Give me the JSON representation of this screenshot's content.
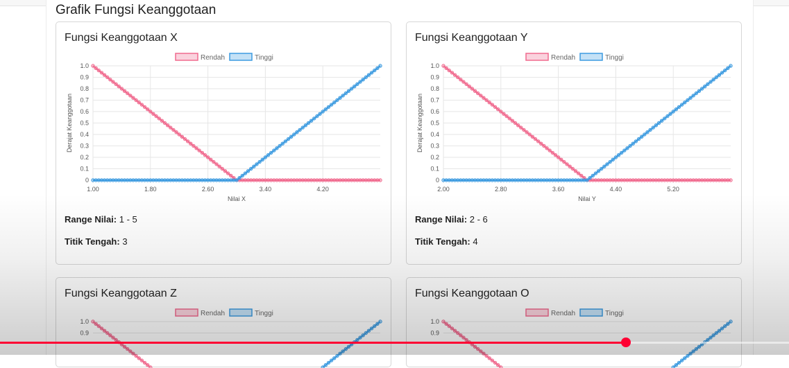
{
  "section_title": "Grafik Fungsi Keanggotaan",
  "legend": {
    "low": "Rendah",
    "high": "Tinggi"
  },
  "colors": {
    "low": "#f06a8e",
    "high": "#3d9be0",
    "progress": "#ff0033"
  },
  "y_axis_label": "Derajat Keanggotaan",
  "player": {
    "progress_fraction": 0.793
  },
  "cards": [
    {
      "title": "Fungsi Keanggotaan X",
      "range_label": "Range Nilai:",
      "range_value": "1 - 5",
      "mid_label": "Titik Tengah:",
      "mid_value": "3",
      "xlabel": "Nilai X",
      "xticks": [
        "1.00",
        "1.80",
        "2.60",
        "3.40",
        "4.20"
      ]
    },
    {
      "title": "Fungsi Keanggotaan Y",
      "range_label": "Range Nilai:",
      "range_value": "2 - 6",
      "mid_label": "Titik Tengah:",
      "mid_value": "4",
      "xlabel": "Nilai Y",
      "xticks": [
        "2.00",
        "2.80",
        "3.60",
        "4.40",
        "5.20"
      ]
    },
    {
      "title": "Fungsi Keanggotaan Z"
    },
    {
      "title": "Fungsi Keanggotaan O"
    }
  ],
  "chart_data": [
    {
      "type": "line",
      "xlabel": "Nilai X",
      "ylabel": "Derajat Keanggotaan",
      "xlim": [
        1,
        5
      ],
      "ylim": [
        0,
        1
      ],
      "yticks": [
        "0",
        "0.1",
        "0.2",
        "0.3",
        "0.4",
        "0.5",
        "0.6",
        "0.7",
        "0.8",
        "0.9",
        "1.0"
      ],
      "xticks": [
        "1.00",
        "1.80",
        "2.60",
        "3.40",
        "4.20"
      ],
      "legend": "top",
      "series": [
        {
          "name": "Rendah",
          "x": [
            1,
            3,
            5
          ],
          "y": [
            1,
            0,
            0
          ]
        },
        {
          "name": "Tinggi",
          "x": [
            1,
            3,
            5
          ],
          "y": [
            0,
            0,
            1
          ]
        }
      ]
    },
    {
      "type": "line",
      "xlabel": "Nilai Y",
      "ylabel": "Derajat Keanggotaan",
      "xlim": [
        2,
        6
      ],
      "ylim": [
        0,
        1
      ],
      "yticks": [
        "0",
        "0.1",
        "0.2",
        "0.3",
        "0.4",
        "0.5",
        "0.6",
        "0.7",
        "0.8",
        "0.9",
        "1.0"
      ],
      "xticks": [
        "2.00",
        "2.80",
        "3.60",
        "4.40",
        "5.20"
      ],
      "legend": "top",
      "series": [
        {
          "name": "Rendah",
          "x": [
            2,
            4,
            6
          ],
          "y": [
            1,
            0,
            0
          ]
        },
        {
          "name": "Tinggi",
          "x": [
            2,
            4,
            6
          ],
          "y": [
            0,
            0,
            1
          ]
        }
      ]
    },
    {
      "type": "line",
      "ylim": [
        0,
        1
      ],
      "yticks": [
        "0.9",
        "1.0"
      ],
      "legend": "top",
      "series": [
        {
          "name": "Rendah",
          "x": [
            0,
            0.5
          ],
          "y": [
            1,
            0
          ]
        },
        {
          "name": "Tinggi",
          "x": [
            0.5,
            1
          ],
          "y": [
            0,
            1
          ]
        }
      ]
    },
    {
      "type": "line",
      "ylim": [
        0,
        1
      ],
      "yticks": [
        "0.9",
        "1.0"
      ],
      "legend": "top",
      "series": [
        {
          "name": "Rendah",
          "x": [
            0,
            0.5
          ],
          "y": [
            1,
            0
          ]
        },
        {
          "name": "Tinggi",
          "x": [
            0.5,
            1
          ],
          "y": [
            0,
            1
          ]
        }
      ]
    }
  ]
}
